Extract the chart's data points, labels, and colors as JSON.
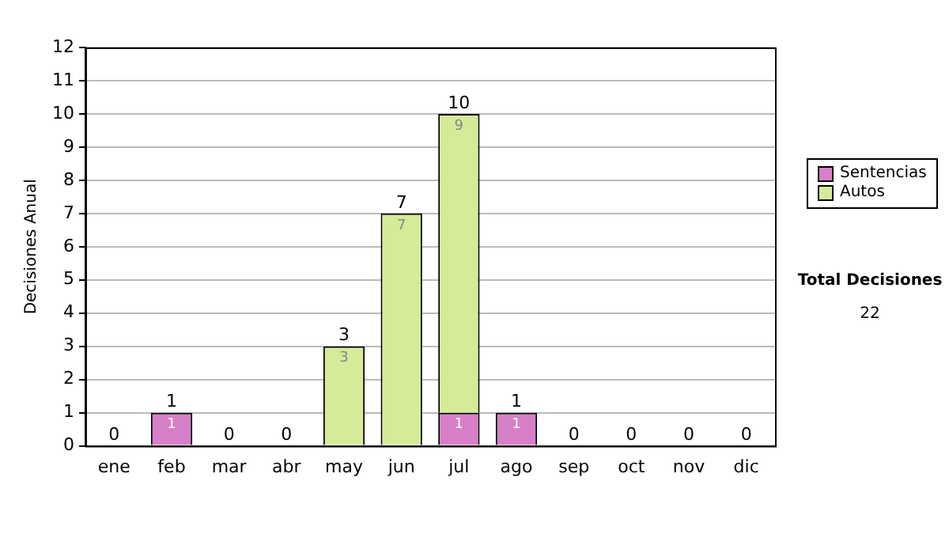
{
  "chart_data": {
    "type": "bar",
    "stacked": true,
    "ylabel": "Decisiones Anual",
    "categories": [
      "ene",
      "feb",
      "mar",
      "abr",
      "may",
      "jun",
      "jul",
      "ago",
      "sep",
      "oct",
      "nov",
      "dic"
    ],
    "series": [
      {
        "name": "Sentencias",
        "color": "#d77fc8",
        "values": [
          0,
          1,
          0,
          0,
          0,
          0,
          1,
          1,
          0,
          0,
          0,
          0
        ],
        "value_labels": [
          null,
          "1",
          null,
          null,
          null,
          null,
          "1",
          "1",
          null,
          null,
          null,
          null
        ]
      },
      {
        "name": "Autos",
        "color": "#d6eb98",
        "values": [
          0,
          0,
          0,
          0,
          3,
          7,
          9,
          0,
          0,
          0,
          0,
          0
        ],
        "value_labels": [
          null,
          null,
          null,
          null,
          "3",
          "7",
          "9",
          null,
          null,
          null,
          null,
          null
        ]
      }
    ],
    "totals": [
      "0",
      "1",
      "0",
      "0",
      "3",
      "7",
      "10",
      "1",
      "0",
      "0",
      "0",
      "0"
    ],
    "ylim": [
      0,
      12
    ],
    "yticks": [
      0,
      1,
      2,
      3,
      4,
      5,
      6,
      7,
      8,
      9,
      10,
      11,
      12
    ],
    "grid": "y",
    "legend": "right",
    "annotations": [
      "Total Decisiones",
      "22"
    ]
  }
}
